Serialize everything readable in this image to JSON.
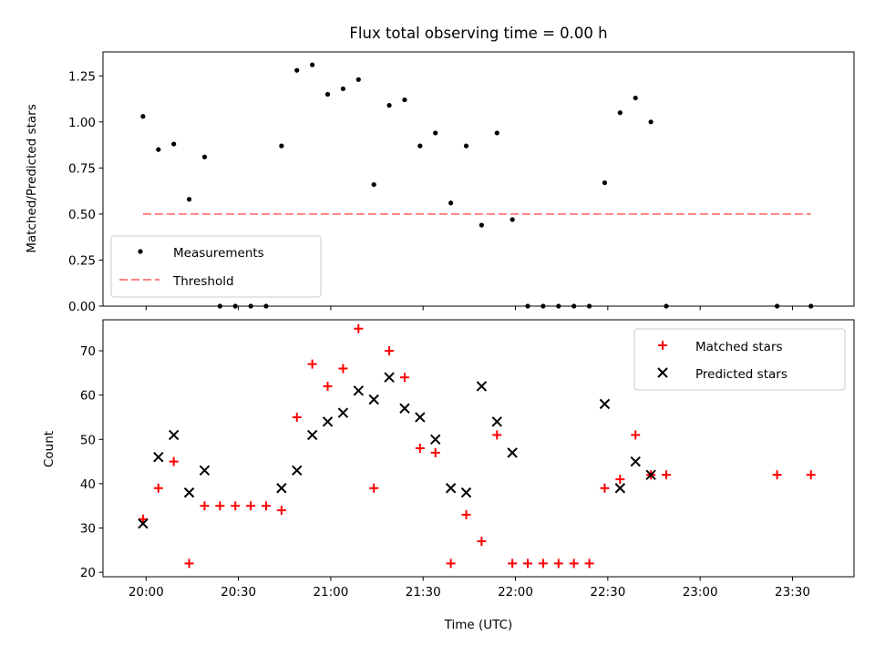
{
  "chart_data": [
    {
      "type": "scatter",
      "title": "Flux total observing time = 0.00 h",
      "xlabel": "",
      "ylabel": "Matched/Predicted stars",
      "ylim": [
        0,
        1.38
      ],
      "yticks": [
        "0.00",
        "0.25",
        "0.50",
        "0.75",
        "1.00",
        "1.25"
      ],
      "legend_position": "lower-left",
      "series": [
        {
          "name": "Measurements",
          "marker": "dot",
          "color": "#000000",
          "x": [
            "19:59",
            "20:04",
            "20:09",
            "20:14",
            "20:19",
            "20:24",
            "20:29",
            "20:34",
            "20:39",
            "20:44",
            "20:49",
            "20:54",
            "20:59",
            "21:04",
            "21:09",
            "21:14",
            "21:19",
            "21:24",
            "21:29",
            "21:34",
            "21:39",
            "21:44",
            "21:49",
            "21:54",
            "21:59",
            "22:04",
            "22:09",
            "22:14",
            "22:19",
            "22:24",
            "22:29",
            "22:34",
            "22:39",
            "22:44",
            "22:49",
            "23:25",
            "23:36"
          ],
          "y": [
            1.03,
            0.85,
            0.88,
            0.58,
            0.81,
            0.0,
            0.0,
            0.0,
            0.0,
            0.87,
            1.28,
            1.31,
            1.15,
            1.18,
            1.23,
            0.66,
            1.09,
            1.12,
            0.87,
            0.94,
            0.56,
            0.87,
            0.44,
            0.94,
            0.47,
            0.0,
            0.0,
            0.0,
            0.0,
            0.0,
            0.67,
            1.05,
            1.13,
            1.0,
            0.0,
            0.0,
            0.0
          ]
        },
        {
          "name": "Threshold",
          "style": "dashed",
          "color": "#ff8080",
          "x": [
            "19:59",
            "23:36"
          ],
          "y": [
            0.5,
            0.5
          ]
        }
      ]
    },
    {
      "type": "scatter",
      "xlabel": "Time (UTC)",
      "ylabel": "Count",
      "ylim": [
        19,
        77
      ],
      "yticks": [
        "20",
        "30",
        "40",
        "50",
        "60",
        "70"
      ],
      "xlim": [
        "19:46",
        "23:50"
      ],
      "xticks": [
        "20:00",
        "20:30",
        "21:00",
        "21:30",
        "22:00",
        "22:30",
        "23:00",
        "23:30"
      ],
      "legend_position": "top-right",
      "series": [
        {
          "name": "Matched stars",
          "marker": "plus",
          "color": "#ff0000",
          "x": [
            "19:59",
            "20:04",
            "20:09",
            "20:14",
            "20:19",
            "20:24",
            "20:29",
            "20:34",
            "20:39",
            "20:44",
            "20:49",
            "20:54",
            "20:59",
            "21:04",
            "21:09",
            "21:14",
            "21:19",
            "21:24",
            "21:29",
            "21:34",
            "21:39",
            "21:44",
            "21:49",
            "21:54",
            "21:59",
            "22:04",
            "22:09",
            "22:14",
            "22:19",
            "22:24",
            "22:29",
            "22:34",
            "22:39",
            "22:44",
            "22:49",
            "23:25",
            "23:36"
          ],
          "y": [
            32,
            39,
            45,
            22,
            35,
            35,
            35,
            35,
            35,
            34,
            55,
            67,
            62,
            66,
            75,
            39,
            70,
            64,
            48,
            47,
            22,
            33,
            27,
            51,
            22,
            22,
            22,
            22,
            22,
            22,
            39,
            41,
            51,
            42,
            42,
            42,
            42
          ]
        },
        {
          "name": "Predicted stars",
          "marker": "x",
          "color": "#000000",
          "x": [
            "19:59",
            "20:04",
            "20:09",
            "20:14",
            "20:19",
            "20:44",
            "20:49",
            "20:54",
            "20:59",
            "21:04",
            "21:09",
            "21:14",
            "21:19",
            "21:24",
            "21:29",
            "21:34",
            "21:39",
            "21:44",
            "21:49",
            "21:54",
            "21:59",
            "22:29",
            "22:34",
            "22:39",
            "22:44"
          ],
          "y": [
            31,
            46,
            51,
            38,
            43,
            39,
            43,
            51,
            54,
            56,
            61,
            59,
            64,
            57,
            55,
            50,
            39,
            38,
            62,
            54,
            47,
            58,
            39,
            45,
            42
          ]
        }
      ]
    }
  ]
}
